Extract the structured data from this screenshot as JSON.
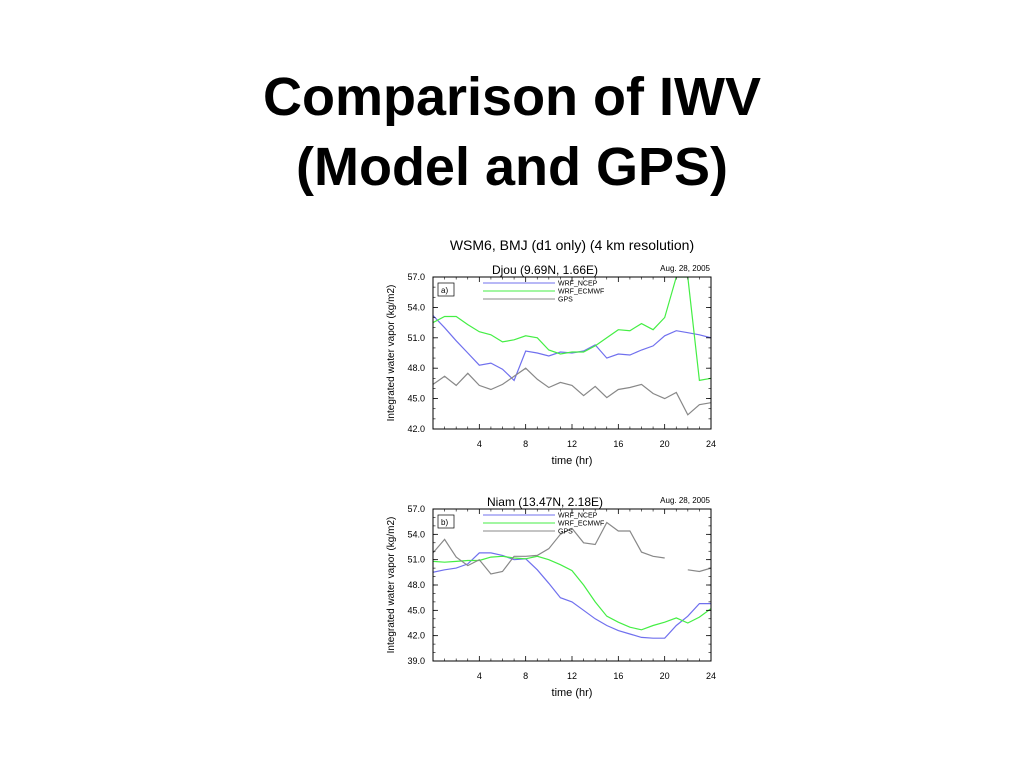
{
  "slide": {
    "title_line1": "Comparison of IWV",
    "title_line2": "(Model and GPS)"
  },
  "figure_title": "WSM6, BMJ (d1 only) (4 km resolution)",
  "chart_data": [
    {
      "type": "line",
      "panel_label": "a)",
      "title": "Djou (9.69N, 1.66E)",
      "date": "Aug. 28, 2005",
      "xlabel": "time (hr)",
      "ylabel": "Integrated water vapor (kg/m2)",
      "xlim": [
        0,
        24
      ],
      "ylim": [
        42.0,
        57.0
      ],
      "xticks": [
        4,
        8,
        12,
        16,
        20,
        24
      ],
      "yticks": [
        "42.0",
        "45.0",
        "48.0",
        "51.0",
        "54.0",
        "57.0"
      ],
      "legend": "top-left",
      "grid": false,
      "x": [
        0,
        1,
        2,
        3,
        4,
        5,
        6,
        7,
        8,
        9,
        10,
        11,
        12,
        13,
        14,
        15,
        16,
        17,
        18,
        19,
        20,
        21,
        22,
        23,
        24
      ],
      "series": [
        {
          "name": "WRF_NCEP",
          "color": "#7070ee",
          "values": [
            53.2,
            52.0,
            50.7,
            49.5,
            48.3,
            48.5,
            47.9,
            46.8,
            49.7,
            49.5,
            49.2,
            49.6,
            49.5,
            49.7,
            50.3,
            49.0,
            49.4,
            49.3,
            49.8,
            50.2,
            51.2,
            51.7,
            51.5,
            51.3,
            51.0
          ]
        },
        {
          "name": "WRF_ECMWF",
          "color": "#44ee44",
          "values": [
            52.5,
            53.1,
            53.1,
            52.3,
            51.6,
            51.3,
            50.6,
            50.8,
            51.2,
            51.0,
            49.8,
            49.4,
            49.6,
            49.6,
            50.2,
            51.0,
            51.8,
            51.7,
            52.4,
            51.8,
            53.0,
            57.0,
            57.0,
            46.8,
            47.0
          ]
        },
        {
          "name": "GPS",
          "color": "#888888",
          "values": [
            46.4,
            47.2,
            46.3,
            47.5,
            46.3,
            45.9,
            46.4,
            47.2,
            48.0,
            46.9,
            46.1,
            46.6,
            46.3,
            45.3,
            46.2,
            45.1,
            45.9,
            46.1,
            46.4,
            45.5,
            45.0,
            45.6,
            43.4,
            44.4,
            44.6
          ]
        }
      ]
    },
    {
      "type": "line",
      "panel_label": "b)",
      "title": "Niam (13.47N, 2.18E)",
      "date": "Aug. 28, 2005",
      "xlabel": "time (hr)",
      "ylabel": "Integrated water vapor (kg/m2)",
      "xlim": [
        0,
        24
      ],
      "ylim": [
        39.0,
        57.0
      ],
      "xticks": [
        4,
        8,
        12,
        16,
        20,
        24
      ],
      "yticks": [
        "39.0",
        "42.0",
        "45.0",
        "48.0",
        "51.0",
        "54.0",
        "57.0"
      ],
      "legend": "top-left",
      "grid": false,
      "x": [
        0,
        1,
        2,
        3,
        4,
        5,
        6,
        7,
        8,
        9,
        10,
        11,
        12,
        13,
        14,
        15,
        16,
        17,
        18,
        19,
        20,
        21,
        22,
        23,
        24
      ],
      "series": [
        {
          "name": "WRF_NCEP",
          "color": "#7070ee",
          "values": [
            49.5,
            49.8,
            50.0,
            50.5,
            51.8,
            51.8,
            51.5,
            51.0,
            51.1,
            49.8,
            48.2,
            46.5,
            46.0,
            45.0,
            44.0,
            43.2,
            42.6,
            42.2,
            41.8,
            41.7,
            41.7,
            43.2,
            44.3,
            45.8,
            45.8
          ]
        },
        {
          "name": "WRF_ECMWF",
          "color": "#44ee44",
          "values": [
            50.8,
            50.7,
            50.8,
            50.9,
            50.9,
            51.3,
            51.4,
            51.2,
            51.1,
            51.4,
            51.0,
            50.4,
            49.7,
            48.0,
            46.0,
            44.3,
            43.6,
            43.0,
            42.7,
            43.2,
            43.6,
            44.1,
            43.5,
            44.2,
            45.2
          ]
        },
        {
          "name": "GPS",
          "color": "#888888",
          "values": [
            51.8,
            53.4,
            51.3,
            50.3,
            51.0,
            49.3,
            49.6,
            51.4,
            51.4,
            51.5,
            52.3,
            54.0,
            54.7,
            53.0,
            52.8,
            55.4,
            54.4,
            54.4,
            51.9,
            51.4,
            51.2,
            null,
            49.8,
            49.6,
            50.0
          ]
        }
      ]
    }
  ]
}
